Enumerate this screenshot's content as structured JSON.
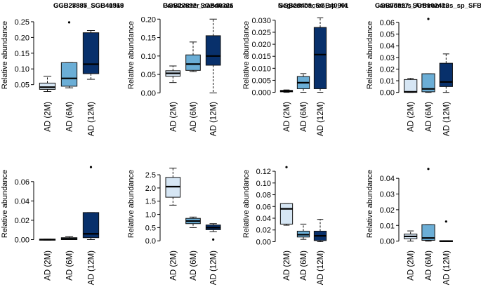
{
  "style": {
    "colors": [
      "#d6e6f4",
      "#6baed6",
      "#08306b"
    ],
    "box_stroke": "#111111",
    "axis_color": "#000000"
  },
  "chart_data": [
    {
      "type": "box",
      "title": "GGB27885_SGB40319",
      "ylabel": "Relative abundance",
      "categories": [
        "AD (2M)",
        "AD (6M)",
        "AD (12M)"
      ],
      "yticks": [
        0.05,
        0.1,
        0.15,
        0.2,
        0.25
      ],
      "ytick_labels": [
        "0.05",
        "0.10",
        "0.15",
        "0.20",
        "0.25"
      ],
      "ylim": [
        0.018,
        0.27
      ],
      "boxes": [
        {
          "q1": 0.035,
          "median": 0.042,
          "q3": 0.055,
          "whisker_low": 0.028,
          "whisker_high": 0.077,
          "outliers": []
        },
        {
          "q1": 0.045,
          "median": 0.07,
          "q3": 0.12,
          "whisker_low": 0.04,
          "whisker_high": 0.12,
          "outliers": [
            0.248
          ]
        },
        {
          "q1": 0.085,
          "median": 0.115,
          "q3": 0.215,
          "whisker_low": 0.067,
          "whisker_high": 0.222,
          "outliers": []
        }
      ]
    },
    {
      "type": "box",
      "title": "Parvibacter_caecicola",
      "ylabel": "Relative abundance",
      "categories": [
        "AD (2M)",
        "AD (6M)",
        "AD (12M)"
      ],
      "yticks": [
        0.0,
        0.05,
        0.1,
        0.15,
        0.2
      ],
      "ytick_labels": [
        "0.00",
        "0.05",
        "0.10",
        "0.15",
        "0.20"
      ],
      "ylim": [
        -0.005,
        0.21
      ],
      "boxes": [
        {
          "q1": 0.045,
          "median": 0.053,
          "q3": 0.06,
          "whisker_low": 0.028,
          "whisker_high": 0.073,
          "outliers": []
        },
        {
          "q1": 0.061,
          "median": 0.078,
          "q3": 0.103,
          "whisker_low": 0.058,
          "whisker_high": 0.138,
          "outliers": []
        },
        {
          "q1": 0.075,
          "median": 0.1,
          "q3": 0.155,
          "whisker_low": 0.0,
          "whisker_high": 0.2,
          "outliers": []
        }
      ]
    },
    {
      "type": "box",
      "title": "Neglectibacter_sp_X4",
      "ylabel": "Relative abundance",
      "categories": [
        "AD (2M)",
        "AD (6M)",
        "AD (12M)"
      ],
      "yticks": [
        0.0,
        0.005,
        0.01,
        0.015,
        0.02,
        0.025,
        0.03
      ],
      "ytick_labels": [
        "0.000",
        "0.005",
        "0.010",
        "0.015",
        "0.020",
        "0.025",
        "0.030"
      ],
      "ylim": [
        -0.001,
        0.032
      ],
      "boxes": [
        {
          "q1": 0.0002,
          "median": 0.0005,
          "q3": 0.0008,
          "whisker_low": 0.0,
          "whisker_high": 0.001,
          "outliers": []
        },
        {
          "q1": 0.0015,
          "median": 0.004,
          "q3": 0.0066,
          "whisker_low": 0.0,
          "whisker_high": 0.0078,
          "outliers": []
        },
        {
          "q1": 0.0015,
          "median": 0.0157,
          "q3": 0.027,
          "whisker_low": 0.0,
          "whisker_high": 0.031,
          "outliers": []
        }
      ]
    },
    {
      "type": "box",
      "title": "GGB75927_SGB102412",
      "ylabel": "Relative abundance",
      "categories": [
        "AD (2M)",
        "AD (6M)",
        "AD (12M)"
      ],
      "yticks": [
        0.0,
        0.01,
        0.02,
        0.03,
        0.04,
        0.05,
        0.06
      ],
      "ytick_labels": [
        "0.00",
        "0.01",
        "0.02",
        "0.03",
        "0.04",
        "0.05",
        "0.06"
      ],
      "ylim": [
        -0.002,
        0.066
      ],
      "boxes": [
        {
          "q1": 0.0,
          "median": 0.0005,
          "q3": 0.011,
          "whisker_low": 0.0,
          "whisker_high": 0.012,
          "outliers": []
        },
        {
          "q1": 0.0005,
          "median": 0.003,
          "q3": 0.016,
          "whisker_low": 0.0,
          "whisker_high": 0.016,
          "outliers": [
            0.063
          ]
        },
        {
          "q1": 0.005,
          "median": 0.009,
          "q3": 0.025,
          "whisker_low": 0.0,
          "whisker_high": 0.033,
          "outliers": []
        }
      ]
    },
    {
      "type": "box",
      "title": "GGB28887_SGB41568",
      "ylabel": "Relative abundance",
      "categories": [
        "AD (2M)",
        "AD (6M)",
        "AD (12M)"
      ],
      "yticks": [
        0.0,
        0.02,
        0.04,
        0.06
      ],
      "ytick_labels": [
        "0.00",
        "0.02",
        "0.04",
        "0.06"
      ],
      "ylim": [
        -0.004,
        0.078
      ],
      "boxes": [
        {
          "q1": -0.0005,
          "median": 0.0,
          "q3": 0.0005,
          "whisker_low": -0.0005,
          "whisker_high": 0.0005,
          "outliers": []
        },
        {
          "q1": 0.0,
          "median": 0.0008,
          "q3": 0.002,
          "whisker_low": 0.0,
          "whisker_high": 0.003,
          "outliers": []
        },
        {
          "q1": 0.002,
          "median": 0.006,
          "q3": 0.028,
          "whisker_low": 0.0,
          "whisker_high": 0.028,
          "outliers": [
            0.075
          ]
        }
      ]
    },
    {
      "type": "box",
      "title": "GGB27892_SGB40326",
      "ylabel": "Relative abundance",
      "categories": [
        "AD (2M)",
        "AD (6M)",
        "AD (12M)"
      ],
      "yticks": [
        0.0,
        0.5,
        1.0,
        1.5,
        2.0,
        2.5
      ],
      "ytick_labels": [
        "0.0",
        "0.5",
        "1.0",
        "1.5",
        "2.0",
        "2.5"
      ],
      "ylim": [
        -0.1,
        2.9
      ],
      "boxes": [
        {
          "q1": 1.65,
          "median": 2.05,
          "q3": 2.4,
          "whisker_low": 1.35,
          "whisker_high": 2.75,
          "outliers": []
        },
        {
          "q1": 0.65,
          "median": 0.75,
          "q3": 0.85,
          "whisker_low": 0.5,
          "whisker_high": 0.9,
          "outliers": []
        },
        {
          "q1": 0.42,
          "median": 0.5,
          "q3": 0.6,
          "whisker_low": 0.35,
          "whisker_high": 0.65,
          "outliers": [
            0.05
          ]
        }
      ]
    },
    {
      "type": "box",
      "title": "GGB28409_SGB40991",
      "ylabel": "Relative abundance",
      "categories": [
        "AD (2M)",
        "AD (6M)",
        "AD (12M)"
      ],
      "yticks": [
        0.0,
        0.02,
        0.04,
        0.06,
        0.08,
        0.1,
        0.12
      ],
      "ytick_labels": [
        "0.00",
        "0.02",
        "0.04",
        "0.06",
        "0.08",
        "0.10",
        "0.12"
      ],
      "ylim": [
        -0.003,
        0.132
      ],
      "boxes": [
        {
          "q1": 0.03,
          "median": 0.056,
          "q3": 0.065,
          "whisker_low": 0.028,
          "whisker_high": 0.065,
          "outliers": [
            0.127
          ]
        },
        {
          "q1": 0.008,
          "median": 0.012,
          "q3": 0.018,
          "whisker_low": 0.004,
          "whisker_high": 0.03,
          "outliers": []
        },
        {
          "q1": 0.002,
          "median": 0.01,
          "q3": 0.018,
          "whisker_low": 0.0,
          "whisker_high": 0.038,
          "outliers": []
        }
      ]
    },
    {
      "type": "box",
      "title": "Candidatus_Arthromitus_sp_SFB_mouse",
      "ylabel": "Relative abundance",
      "categories": [
        "AD (2M)",
        "AD (6M)",
        "AD (12M)"
      ],
      "yticks": [
        0.0,
        0.01,
        0.02,
        0.03,
        0.04
      ],
      "ytick_labels": [
        "0.00",
        "0.01",
        "0.02",
        "0.03",
        "0.04"
      ],
      "ylim": [
        -0.0015,
        0.049
      ],
      "boxes": [
        {
          "q1": 0.0015,
          "median": 0.003,
          "q3": 0.0045,
          "whisker_low": 0.0,
          "whisker_high": 0.0065,
          "outliers": []
        },
        {
          "q1": 0.0005,
          "median": 0.002,
          "q3": 0.0105,
          "whisker_low": 0.0,
          "whisker_high": 0.0105,
          "outliers": [
            0.046
          ]
        },
        {
          "q1": -0.0002,
          "median": 0.0,
          "q3": 0.0003,
          "whisker_low": -0.0002,
          "whisker_high": 0.0003,
          "outliers": [
            0.0125
          ]
        }
      ]
    }
  ]
}
